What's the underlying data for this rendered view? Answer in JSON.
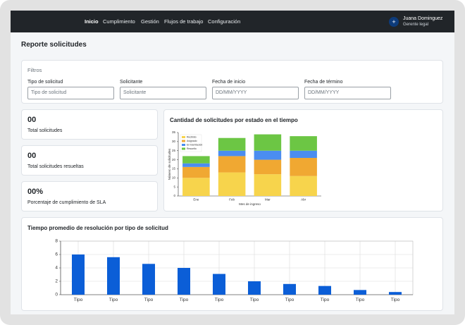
{
  "header": {
    "nav": [
      "Inicio",
      "Cumplimiento",
      "Gestión",
      "Flujos de trabajo",
      "Configuración"
    ],
    "user": {
      "icon": "+",
      "name": "Juana Dominguez",
      "role": "Gerente legal"
    }
  },
  "page_title": "Reporte solicitudes",
  "filters": {
    "title": "Filtros",
    "fields": [
      {
        "label": "Tipo de solicitud",
        "placeholder": "Tipo de solicitud"
      },
      {
        "label": "Solicitante",
        "placeholder": "Solicitante"
      },
      {
        "label": "Fecha de inicio",
        "placeholder": "DD/MM/YYYY"
      },
      {
        "label": "Fecha de término",
        "placeholder": "DD/MM/YYYY"
      }
    ]
  },
  "stats": [
    {
      "value": "00",
      "label": "Total solicitudes"
    },
    {
      "value": "00",
      "label": "Total solicitudes resueltas"
    },
    {
      "value": "00%",
      "label": "Porcentaje de cumplimiento de SLA"
    }
  ],
  "chart_data": [
    {
      "type": "bar",
      "stacked": true,
      "title": "Cantidad de solicitudes por estado en el tiempo",
      "x_label": "Mes de ingreso",
      "y_label": "Número de solicitudes",
      "categories": [
        "Ene",
        "Feb",
        "Mar",
        "Abr"
      ],
      "series": [
        {
          "name": "Recibido",
          "color": "#f7d44c",
          "values": [
            10,
            13,
            12,
            11
          ]
        },
        {
          "name": "Asignado",
          "color": "#f0a832",
          "values": [
            6,
            9,
            8,
            10
          ]
        },
        {
          "name": "En tramitación",
          "color": "#4b8df0",
          "values": [
            2,
            3,
            5,
            4
          ]
        },
        {
          "name": "Resuelto",
          "color": "#6cc644",
          "values": [
            4,
            7,
            9,
            8
          ]
        }
      ],
      "ylim": [
        0,
        35
      ],
      "yticks": [
        0,
        5,
        10,
        15,
        20,
        25,
        30,
        35
      ],
      "grid": false,
      "legend": "upper left"
    },
    {
      "type": "bar",
      "title": "Tiempo promedio de resolución por tipo de solicitud",
      "categories": [
        "Tipo",
        "Tipo",
        "Tipo",
        "Tipo",
        "Tipo",
        "Tipo",
        "Tipo",
        "Tipo",
        "Tipo",
        "Tipo"
      ],
      "values": [
        6,
        5.6,
        4.6,
        4,
        3.1,
        2,
        1.6,
        1.3,
        0.7,
        0.4
      ],
      "color": "#0b5ed7",
      "ylim": [
        0,
        8
      ],
      "yticks": [
        0,
        2,
        4,
        6,
        8
      ],
      "grid": true
    }
  ]
}
